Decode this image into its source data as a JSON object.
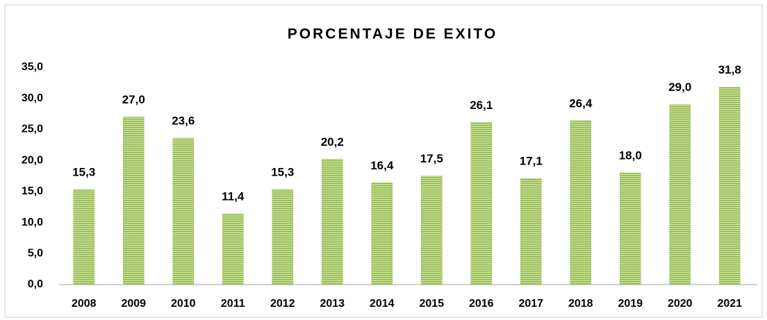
{
  "chart_data": {
    "type": "bar",
    "title": "PORCENTAJE DE EXITO",
    "categories": [
      "2008",
      "2009",
      "2010",
      "2011",
      "2012",
      "2013",
      "2014",
      "2015",
      "2016",
      "2017",
      "2018",
      "2019",
      "2020",
      "2021"
    ],
    "values": [
      15.3,
      27.0,
      23.6,
      11.4,
      15.3,
      20.2,
      16.4,
      17.5,
      26.1,
      17.1,
      26.4,
      18.0,
      29.0,
      31.8
    ],
    "value_labels": [
      "15,3",
      "27,0",
      "23,6",
      "11,4",
      "15,3",
      "20,2",
      "16,4",
      "17,5",
      "26,1",
      "17,1",
      "26,4",
      "18,0",
      "29,0",
      "31,8"
    ],
    "color": "#9bbb59",
    "ylim": [
      0,
      35
    ],
    "yticks": [
      {
        "value": 0,
        "label": "0,0"
      },
      {
        "value": 5,
        "label": "5,0"
      },
      {
        "value": 10,
        "label": "10,0"
      },
      {
        "value": 15,
        "label": "15,0"
      },
      {
        "value": 20,
        "label": "20,0"
      },
      {
        "value": 25,
        "label": "25,0"
      },
      {
        "value": 30,
        "label": "30,0"
      },
      {
        "value": 35,
        "label": "35,0"
      }
    ],
    "grid": false
  }
}
